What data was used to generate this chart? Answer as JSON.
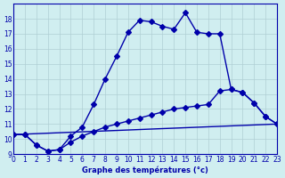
{
  "xlabel": "Graphe des températures (°c)",
  "bg_color": "#d0eef0",
  "grid_color": "#b0cfd4",
  "line_color": "#0000aa",
  "xlim": [
    0,
    23
  ],
  "ylim": [
    9,
    19
  ],
  "yticks": [
    9,
    10,
    11,
    12,
    13,
    14,
    15,
    16,
    17,
    18
  ],
  "xticks": [
    0,
    1,
    2,
    3,
    4,
    5,
    6,
    7,
    8,
    9,
    10,
    11,
    12,
    13,
    14,
    15,
    16,
    17,
    18,
    19,
    20,
    21,
    22,
    23
  ],
  "line1_x": [
    0,
    1,
    2,
    3,
    4,
    5,
    6,
    7,
    8,
    9,
    10,
    11,
    12,
    13,
    14,
    15,
    16,
    17,
    18,
    19,
    20,
    21,
    22,
    23
  ],
  "line1_y": [
    10.3,
    10.3,
    9.6,
    9.2,
    9.3,
    10.2,
    10.8,
    12.3,
    14.0,
    15.5,
    17.1,
    17.9,
    17.8,
    17.5,
    17.3,
    18.4,
    17.1,
    17.0,
    17.0,
    13.3,
    13.1,
    12.4,
    11.5,
    11.0
  ],
  "line2_x": [
    0,
    1,
    2,
    3,
    4,
    5,
    6,
    7,
    8,
    9,
    10,
    11,
    12,
    13,
    14,
    15,
    16,
    17,
    18,
    19,
    20,
    21,
    22,
    23
  ],
  "line2_y": [
    10.3,
    10.3,
    9.6,
    9.2,
    9.3,
    9.8,
    10.2,
    10.5,
    10.8,
    11.0,
    11.2,
    11.4,
    11.6,
    11.8,
    12.0,
    12.1,
    12.2,
    12.3,
    13.2,
    13.3,
    13.1,
    12.4,
    11.5,
    11.0
  ],
  "line3_x": [
    0,
    23
  ],
  "line3_y": [
    10.3,
    11.0
  ],
  "marker_size": 3,
  "line_width": 1.0
}
